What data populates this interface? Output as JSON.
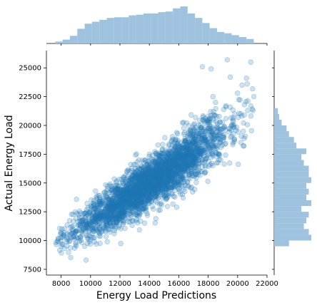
{
  "chart_data": {
    "type": "scatter",
    "title": "",
    "xlabel": "Energy Load Predictions",
    "ylabel": "Actual Energy Load",
    "xlim": [
      7000,
      22000
    ],
    "ylim": [
      7000,
      26500
    ],
    "x_ticks": [
      8000,
      10000,
      12000,
      14000,
      16000,
      18000,
      20000,
      22000
    ],
    "x_tick_labels": [
      "8000",
      "10000",
      "12000",
      "14000",
      "16000",
      "18000",
      "20000",
      "22000"
    ],
    "y_ticks": [
      7500,
      10000,
      12500,
      15000,
      17500,
      20000,
      22500,
      25000
    ],
    "y_tick_labels": [
      "7500",
      "10000",
      "12500",
      "15000",
      "17500",
      "20000",
      "22500",
      "25000"
    ],
    "grid": false,
    "legend": "none",
    "point_count": 3000,
    "relationship": {
      "x_range": [
        7600,
        21200
      ],
      "y_at_x_min": 9800,
      "y_at_x_max": 21500,
      "trend_slope": 0.93
    },
    "series": [
      {
        "values_note": "",
        "points": [
          [
            7650,
            9850
          ],
          [
            7800,
            10150
          ],
          [
            8100,
            9650
          ],
          [
            8400,
            10300
          ],
          [
            8700,
            10600
          ],
          [
            9000,
            9800
          ],
          [
            9200,
            10200
          ],
          [
            9400,
            10900
          ],
          [
            9600,
            9500
          ],
          [
            9700,
            8300
          ],
          [
            9800,
            11200
          ],
          [
            10000,
            10100
          ],
          [
            10200,
            10800
          ],
          [
            10400,
            9700
          ],
          [
            10600,
            11500
          ],
          [
            10800,
            12200
          ],
          [
            11000,
            10900
          ],
          [
            11200,
            11800
          ],
          [
            11400,
            12600
          ],
          [
            11600,
            11300
          ],
          [
            11800,
            13200
          ],
          [
            12000,
            12400
          ],
          [
            12200,
            11700
          ],
          [
            12400,
            13500
          ],
          [
            12600,
            12900
          ],
          [
            12800,
            14100
          ],
          [
            13000,
            13300
          ],
          [
            13200,
            12700
          ],
          [
            13400,
            14500
          ],
          [
            13600,
            13800
          ],
          [
            13800,
            15100
          ],
          [
            14000,
            14200
          ],
          [
            14200,
            13600
          ],
          [
            14400,
            15400
          ],
          [
            14600,
            14800
          ],
          [
            14800,
            16000
          ],
          [
            15000,
            15200
          ],
          [
            15200,
            14500
          ],
          [
            15400,
            16300
          ],
          [
            15600,
            15700
          ],
          [
            15800,
            16800
          ],
          [
            16000,
            16100
          ],
          [
            16200,
            15400
          ],
          [
            16400,
            17200
          ],
          [
            16600,
            16600
          ],
          [
            16800,
            17700
          ],
          [
            17000,
            17000
          ],
          [
            17200,
            18300
          ],
          [
            17400,
            17600
          ],
          [
            17600,
            19200
          ],
          [
            17800,
            20600
          ],
          [
            18000,
            18500
          ],
          [
            18200,
            24900
          ],
          [
            18500,
            22000
          ],
          [
            18800,
            20300
          ],
          [
            19000,
            19100
          ],
          [
            19200,
            21700
          ],
          [
            19500,
            24200
          ],
          [
            19800,
            21000
          ],
          [
            20000,
            22800
          ],
          [
            20300,
            23500
          ],
          [
            20600,
            24100
          ],
          [
            20900,
            25500
          ],
          [
            21100,
            22500
          ],
          [
            17600,
            25100
          ],
          [
            19300,
            25700
          ]
        ]
      }
    ],
    "marginal_x": {
      "bins": [
        7600,
        8100,
        8600,
        9100,
        9600,
        10100,
        10600,
        11100,
        11600,
        12100,
        12600,
        13100,
        13600,
        14100,
        14600,
        15100,
        15600,
        16100,
        16600,
        17100,
        17600,
        18100,
        18600,
        19100,
        19600,
        20100,
        20600,
        21100
      ],
      "counts": [
        3,
        6,
        12,
        23,
        31,
        34,
        37,
        40,
        41,
        41,
        44,
        45,
        47,
        47,
        49,
        50,
        55,
        58,
        47,
        40,
        32,
        24,
        18,
        16,
        13,
        10,
        7
      ]
    },
    "marginal_y": {
      "bins": [
        9500,
        10000,
        10500,
        11000,
        11500,
        12000,
        12500,
        13000,
        13500,
        14000,
        14500,
        15000,
        15500,
        16000,
        16500,
        17000,
        17500,
        18000,
        18500,
        19000,
        19500,
        20000,
        20500,
        21000,
        21500
      ],
      "counts": [
        12,
        30,
        28,
        24,
        26,
        28,
        22,
        30,
        26,
        28,
        26,
        30,
        28,
        28,
        24,
        22,
        26,
        18,
        16,
        12,
        10,
        6,
        4,
        3,
        2
      ]
    },
    "colors": {
      "point": "#1f77b4",
      "marginal": "#9fc3de"
    }
  }
}
